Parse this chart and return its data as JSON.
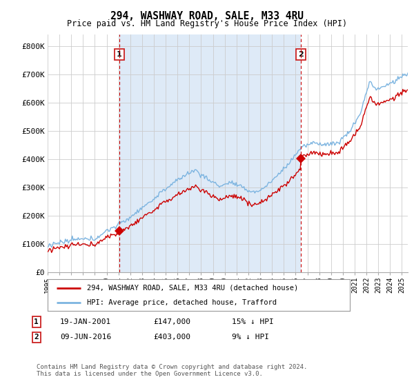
{
  "title": "294, WASHWAY ROAD, SALE, M33 4RU",
  "subtitle": "Price paid vs. HM Land Registry's House Price Index (HPI)",
  "ylabel_ticks": [
    "£0",
    "£100K",
    "£200K",
    "£300K",
    "£400K",
    "£500K",
    "£600K",
    "£700K",
    "£800K"
  ],
  "ytick_values": [
    0,
    100000,
    200000,
    300000,
    400000,
    500000,
    600000,
    700000,
    800000
  ],
  "ylim": [
    0,
    840000
  ],
  "xlim_start": 1995.0,
  "xlim_end": 2025.5,
  "hpi_color": "#7cb4e0",
  "hpi_fill_color": "#deeaf7",
  "price_color": "#cc0000",
  "vline_color": "#cc0000",
  "marker1_date": 2001.05,
  "marker1_price": 147000,
  "marker2_date": 2016.44,
  "marker2_price": 403000,
  "legend_label1": "294, WASHWAY ROAD, SALE, M33 4RU (detached house)",
  "legend_label2": "HPI: Average price, detached house, Trafford",
  "annotation1_num": "1",
  "annotation1_date": "19-JAN-2001",
  "annotation1_price": "£147,000",
  "annotation1_change": "15% ↓ HPI",
  "annotation2_num": "2",
  "annotation2_date": "09-JUN-2016",
  "annotation2_price": "£403,000",
  "annotation2_change": "9% ↓ HPI",
  "footer": "Contains HM Land Registry data © Crown copyright and database right 2024.\nThis data is licensed under the Open Government Licence v3.0.",
  "background_color": "#ffffff",
  "grid_color": "#cccccc"
}
